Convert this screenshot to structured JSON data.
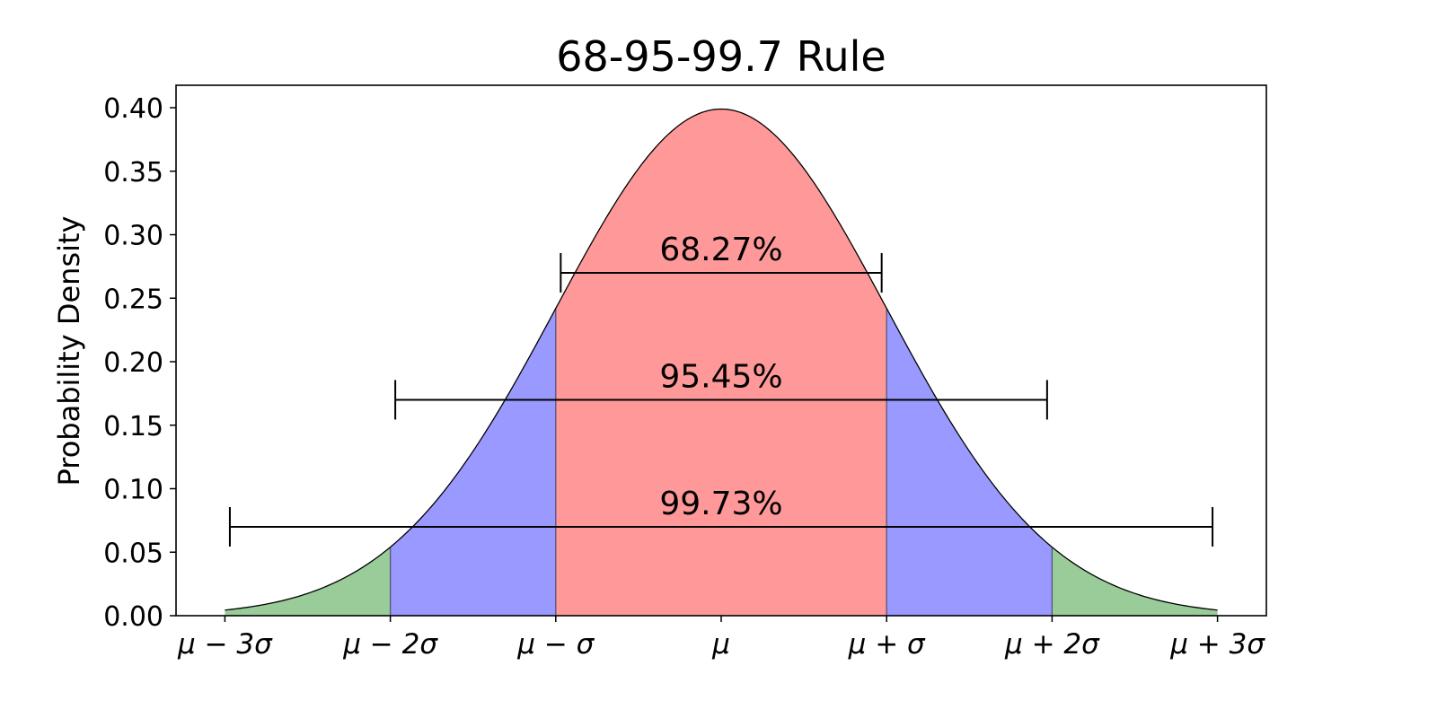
{
  "chart_data": {
    "type": "area",
    "title": "68-95-99.7 Rule",
    "xlabel": "",
    "ylabel": "Probability Density",
    "x_domain": [
      -3.3,
      3.3
    ],
    "ylim": [
      0,
      0.42
    ],
    "grid": false,
    "legend": null,
    "x_ticks": [
      {
        "value": -3,
        "label": "μ − 3σ"
      },
      {
        "value": -2,
        "label": "μ − 2σ"
      },
      {
        "value": -1,
        "label": "μ − σ"
      },
      {
        "value": 0,
        "label": "μ"
      },
      {
        "value": 1,
        "label": "μ + σ"
      },
      {
        "value": 2,
        "label": "μ + 2σ"
      },
      {
        "value": 3,
        "label": "μ + 3σ"
      }
    ],
    "y_ticks": [
      {
        "value": 0.0,
        "label": "0.00"
      },
      {
        "value": 0.05,
        "label": "0.05"
      },
      {
        "value": 0.1,
        "label": "0.10"
      },
      {
        "value": 0.15,
        "label": "0.15"
      },
      {
        "value": 0.2,
        "label": "0.20"
      },
      {
        "value": 0.25,
        "label": "0.25"
      },
      {
        "value": 0.3,
        "label": "0.30"
      },
      {
        "value": 0.35,
        "label": "0.35"
      },
      {
        "value": 0.4,
        "label": "0.40"
      }
    ],
    "curve": {
      "name": "Standard normal PDF",
      "mean": 0,
      "std": 1,
      "x_range": [
        -3,
        3
      ],
      "peak": 0.3989
    },
    "regions": [
      {
        "name": "within 1σ",
        "from": -1,
        "to": 1,
        "color": "#ff9999"
      },
      {
        "name": "1σ to 2σ (left)",
        "from": -2,
        "to": -1,
        "color": "#9999ff"
      },
      {
        "name": "1σ to 2σ (right)",
        "from": 1,
        "to": 2,
        "color": "#9999ff"
      },
      {
        "name": "2σ to 3σ (left)",
        "from": -3,
        "to": -2,
        "color": "#99cc99"
      },
      {
        "name": "2σ to 3σ (right)",
        "from": 2,
        "to": 3,
        "color": "#99cc99"
      }
    ],
    "intervals": [
      {
        "label": "68.27%",
        "from": -0.97,
        "to": 0.97,
        "y": 0.27
      },
      {
        "label": "95.45%",
        "from": -1.97,
        "to": 1.97,
        "y": 0.17
      },
      {
        "label": "99.73%",
        "from": -2.97,
        "to": 2.97,
        "y": 0.07
      }
    ]
  }
}
